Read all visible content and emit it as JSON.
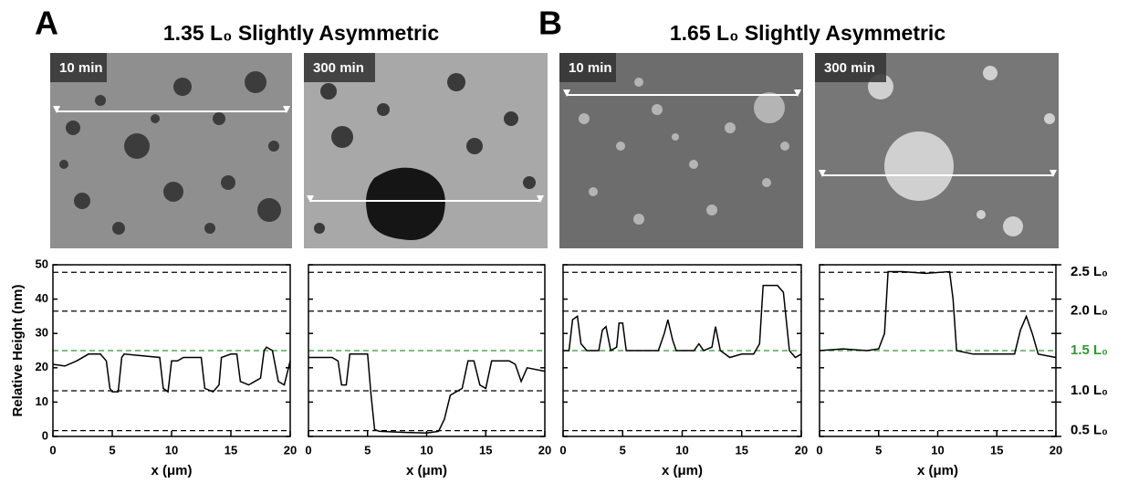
{
  "groups": [
    {
      "panel": "A",
      "title": "1.35 L₀ Slightly Asymmetric"
    },
    {
      "panel": "B",
      "title": "1.65 L₀ Slightly Asymmetric"
    }
  ],
  "y_label": "Relative Height (nm)",
  "reference_lines": [
    {
      "value": 47.8,
      "label": "2.5 L₀",
      "color": "#000000"
    },
    {
      "value": 36.5,
      "label": "2.0 L₀",
      "color": "#000000"
    },
    {
      "value": 25,
      "label": "1.5 L₀",
      "color": "#2e9a2e"
    },
    {
      "value": 13.3,
      "label": "1.0 L₀",
      "color": "#000000"
    },
    {
      "value": 1.7,
      "label": "0.5 L₀",
      "color": "#000000"
    }
  ],
  "chart_data": [
    {
      "type": "line",
      "image_label": "10 min",
      "x_label": "x (μm)",
      "color": "#000000",
      "x": [
        0,
        1,
        2,
        3,
        4,
        4.5,
        4.8,
        5,
        5.5,
        5.8,
        6,
        9,
        9.3,
        9.7,
        10,
        10.5,
        11,
        12.5,
        12.8,
        13.5,
        14,
        14.2,
        15,
        15.5,
        15.8,
        16.5,
        17,
        17.5,
        17.8,
        18,
        18.5,
        19,
        19.5,
        20
      ],
      "values": [
        21,
        20.5,
        22,
        24,
        24,
        22,
        14,
        13,
        13,
        23,
        24,
        23,
        14,
        13,
        22,
        22,
        23,
        23,
        14,
        13,
        15,
        23,
        24,
        24,
        16,
        15,
        16,
        17,
        25,
        26,
        25,
        16,
        15,
        22
      ],
      "xlim": [
        0,
        20
      ],
      "xticks": [
        0,
        5,
        10,
        15,
        20
      ],
      "ylim": [
        0,
        50
      ],
      "yticks": [
        0,
        10,
        20,
        30,
        40,
        50
      ]
    },
    {
      "type": "line",
      "image_label": "300 min",
      "x_label": "x (μm)",
      "color": "#000000",
      "x": [
        0,
        2,
        2.5,
        2.8,
        3.2,
        3.5,
        4,
        5,
        5.3,
        5.6,
        6,
        8,
        10,
        11,
        11.5,
        12,
        13,
        13.5,
        14,
        14.5,
        15,
        15.5,
        17,
        17.5,
        18,
        18.5,
        20
      ],
      "values": [
        23,
        23,
        22,
        15,
        15,
        24,
        24,
        24,
        12,
        2,
        1.5,
        1.2,
        1,
        1.5,
        5,
        12,
        14,
        22,
        22,
        15,
        14,
        22,
        22,
        21,
        16,
        20,
        19
      ],
      "xlim": [
        0,
        20
      ],
      "xticks": [
        0,
        5,
        10,
        15,
        20
      ],
      "ylim": [
        0,
        50
      ],
      "yticks": [
        0,
        10,
        20,
        30,
        40,
        50
      ]
    },
    {
      "type": "line",
      "image_label": "10 min",
      "x_label": "x (μm)",
      "color": "#000000",
      "x": [
        0,
        0.5,
        0.8,
        1.2,
        1.5,
        2,
        3,
        3.3,
        3.6,
        4,
        4.5,
        4.7,
        5,
        5.3,
        8,
        8.5,
        8.8,
        9.2,
        9.5,
        11,
        11.4,
        11.8,
        12.5,
        12.8,
        13.2,
        14,
        15,
        16,
        16.5,
        16.8,
        18,
        18.5,
        19,
        19.5,
        20
      ],
      "values": [
        25,
        25,
        34,
        35,
        27,
        25,
        25,
        31,
        32,
        25,
        26,
        33,
        33,
        25,
        25,
        30,
        34,
        28,
        25,
        25,
        27,
        25,
        26,
        32,
        25,
        23,
        24,
        24,
        27,
        44,
        44,
        42,
        25,
        23,
        24
      ],
      "xlim": [
        0,
        20
      ],
      "xticks": [
        0,
        5,
        10,
        15,
        20
      ],
      "ylim": [
        0,
        50
      ],
      "yticks": [
        0,
        10,
        20,
        30,
        40,
        50
      ]
    },
    {
      "type": "line",
      "image_label": "300 min",
      "x_label": "x (μm)",
      "color": "#000000",
      "x": [
        0,
        2,
        4,
        5,
        5.5,
        5.8,
        7,
        9,
        11,
        11.3,
        11.6,
        13,
        15,
        16.5,
        17,
        17.5,
        18,
        18.5,
        20
      ],
      "values": [
        25,
        25.5,
        25,
        25.5,
        30,
        48,
        48,
        47.5,
        48,
        40,
        25,
        24,
        24,
        24,
        31,
        35,
        30,
        24,
        23
      ],
      "xlim": [
        0,
        20
      ],
      "xticks": [
        0,
        5,
        10,
        15,
        20
      ],
      "ylim": [
        0,
        50
      ],
      "yticks": [
        0,
        10,
        20,
        30,
        40,
        50
      ]
    }
  ]
}
